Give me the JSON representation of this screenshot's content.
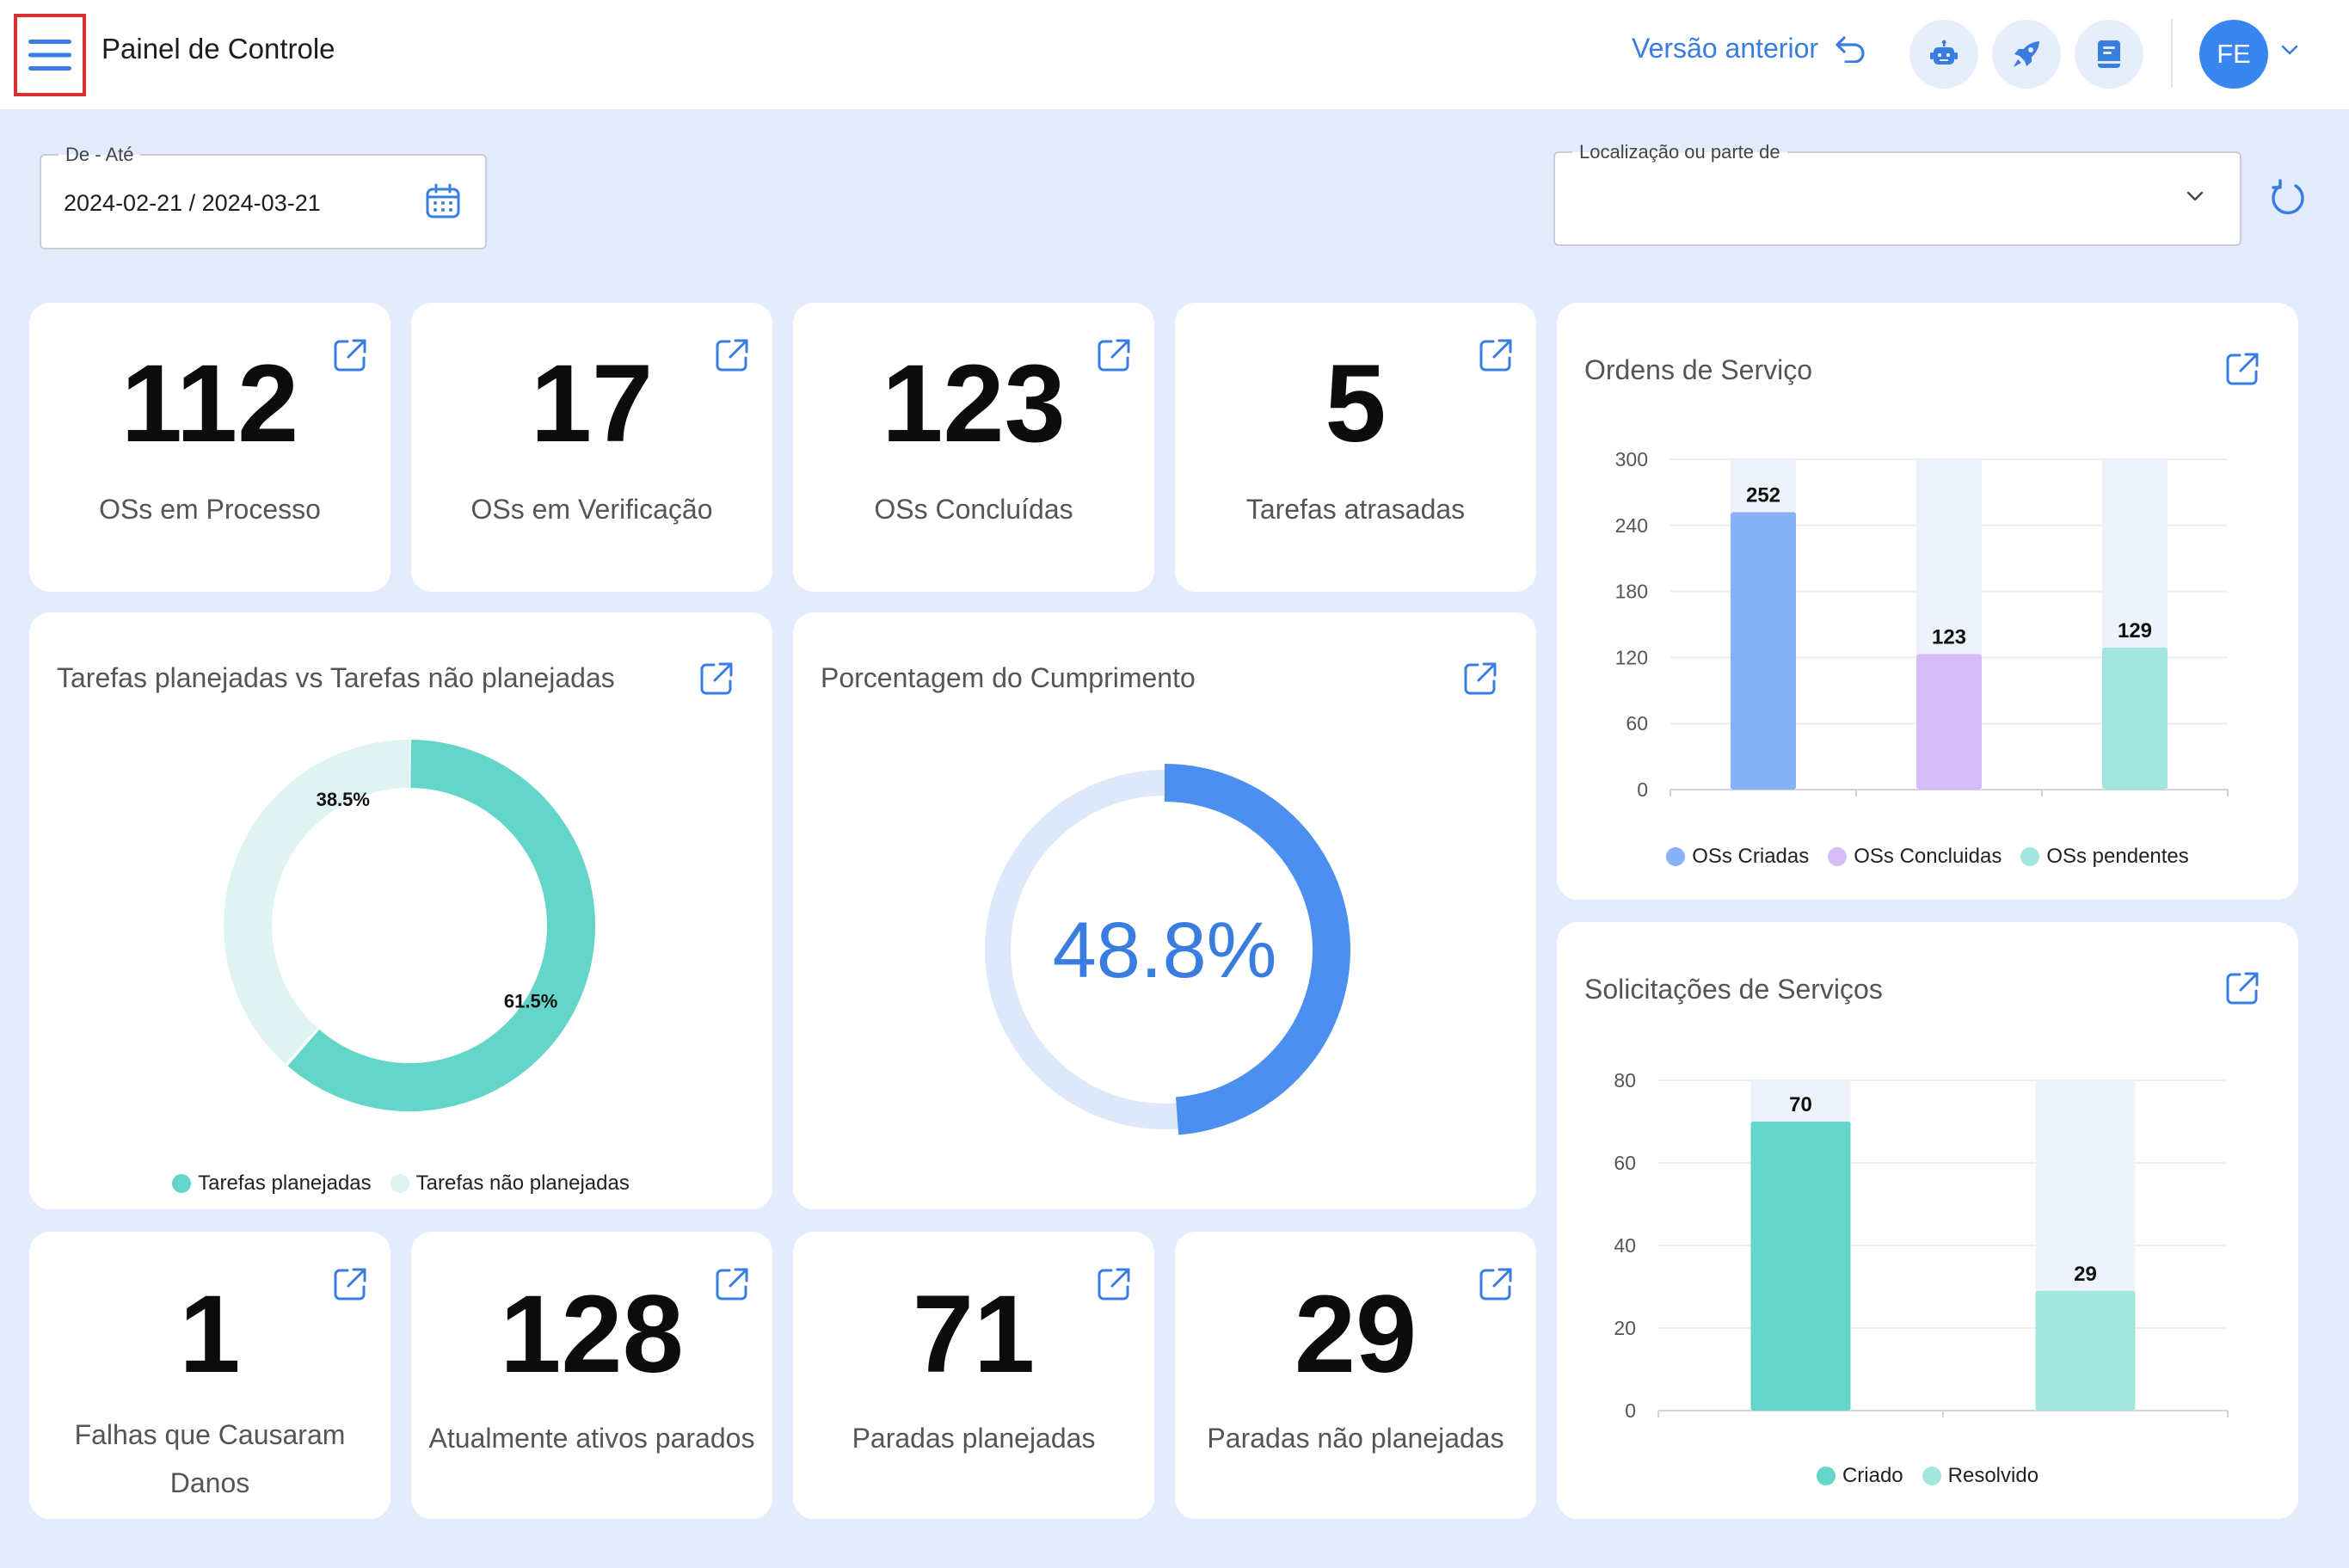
{
  "header": {
    "title": "Painel de Controle",
    "prev_version": "Versão anterior",
    "avatar_initials": "FE",
    "icons": [
      "menu-icon",
      "robot-icon",
      "rocket-icon",
      "book-icon",
      "undo-icon",
      "chevron-down-icon"
    ]
  },
  "filters": {
    "date_label": "De - Até",
    "date_value": "2024-02-21 / 2024-03-21",
    "location_label": "Localização ou parte de",
    "location_value": ""
  },
  "kpis_top": [
    {
      "value": "112",
      "label": "OSs em Processo"
    },
    {
      "value": "17",
      "label": "OSs em Verificação"
    },
    {
      "value": "123",
      "label": "OSs Concluídas"
    },
    {
      "value": "5",
      "label": "Tarefas atrasadas"
    }
  ],
  "kpis_bottom": [
    {
      "value": "1",
      "label_line1": "Falhas que Causaram",
      "label_line2": "Danos"
    },
    {
      "value": "128",
      "label_line1": "Atualmente ativos parados"
    },
    {
      "value": "71",
      "label_line1": "Paradas planejadas"
    },
    {
      "value": "29",
      "label_line1": "Paradas não planejadas"
    }
  ],
  "planned_vs_unplanned": {
    "title": "Tarefas planejadas vs Tarefas não planejadas",
    "chart_data": {
      "type": "pie",
      "labels": [
        "Tarefas planejadas",
        "Tarefas não planejadas"
      ],
      "values": [
        61.5,
        38.5
      ],
      "value_labels": [
        "61.5%",
        "38.5%"
      ],
      "colors": [
        "#64d5c9",
        "#dff4f2"
      ]
    }
  },
  "compliance": {
    "title": "Porcentagem do Cumprimento",
    "chart_data": {
      "type": "pie",
      "value": 48.8,
      "value_label": "48.8%",
      "color": "#4d8ff0",
      "track_color": "#dde8fb"
    }
  },
  "service_orders": {
    "title": "Ordens de Serviço",
    "chart_data": {
      "type": "bar",
      "categories": [
        "OSs Criadas",
        "OSs Concluidas",
        "OSs pendentes"
      ],
      "values": [
        252,
        123,
        129
      ],
      "colors": [
        "#86b1f5",
        "#d7bdf8",
        "#a3e6df"
      ],
      "ylim": [
        0,
        300
      ],
      "yticks": [
        "0",
        "60",
        "120",
        "180",
        "240",
        "300"
      ],
      "legend": [
        "OSs Criadas",
        "OSs Concluidas",
        "OSs pendentes"
      ]
    }
  },
  "service_requests": {
    "title": "Solicitações de Serviços",
    "chart_data": {
      "type": "bar",
      "categories": [
        "Criado",
        "Resolvido"
      ],
      "values": [
        70,
        29
      ],
      "colors": [
        "#64d5c9",
        "#a3e6df"
      ],
      "ylim": [
        0,
        80
      ],
      "yticks": [
        "0",
        "20",
        "40",
        "60",
        "80"
      ],
      "legend": [
        "Criado",
        "Resolvido"
      ]
    }
  }
}
